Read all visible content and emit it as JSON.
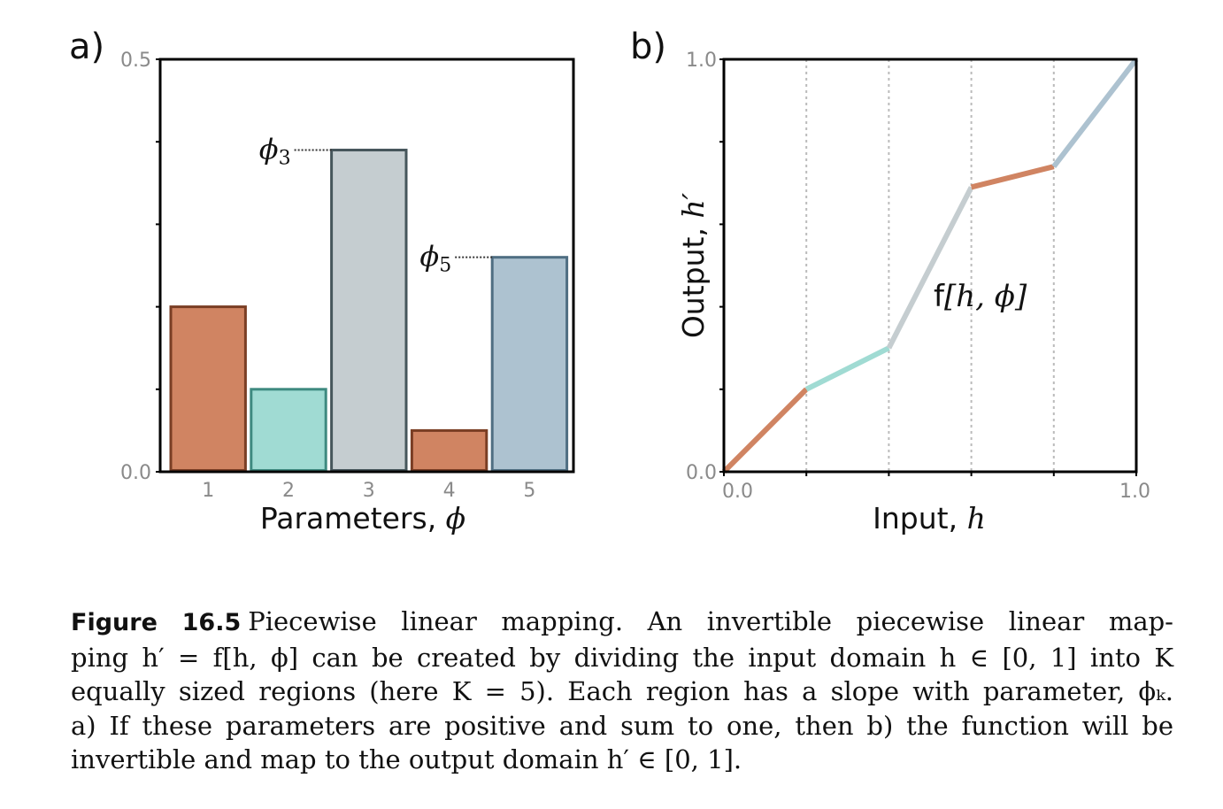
{
  "chart_data": [
    {
      "panel_label": "a)",
      "type": "bar",
      "title": "",
      "xlabel": "Parameters, ",
      "xlabel_math": "ϕ",
      "ylabel": "",
      "categories": [
        "1",
        "2",
        "3",
        "4",
        "5"
      ],
      "values": [
        0.2,
        0.1,
        0.39,
        0.05,
        0.26
      ],
      "ylim": [
        0.0,
        0.5
      ],
      "yticks": [
        0.0,
        0.1,
        0.2,
        0.3,
        0.4,
        0.5
      ],
      "ytick_labels": {
        "0": "0.0",
        "5": "0.5"
      },
      "grid": false,
      "colors": {
        "fill": [
          "#d08462",
          "#a0dbd3",
          "#c5cdd0",
          "#d08462",
          "#adc2d0"
        ],
        "stroke": [
          "#7a3e24",
          "#3e8a80",
          "#46565b",
          "#7a3e24",
          "#4f6e82"
        ]
      },
      "annotations": [
        {
          "text": "ϕ",
          "subscript": "3",
          "bar_index": 2
        },
        {
          "text": "ϕ",
          "subscript": "5",
          "bar_index": 4
        }
      ]
    },
    {
      "panel_label": "b)",
      "type": "line",
      "title": "",
      "xlabel": "Input, ",
      "xlabel_math": "h",
      "ylabel": "Output, ",
      "ylabel_math": "h′",
      "xlim": [
        0.0,
        1.0
      ],
      "ylim": [
        0.0,
        1.0
      ],
      "xtick_labels": [
        "0.0",
        "1.0"
      ],
      "ytick_labels": [
        "0.0",
        "1.0"
      ],
      "xticks": [
        0.0,
        0.2,
        0.4,
        0.6,
        0.8,
        1.0
      ],
      "yticks": [
        0.0,
        0.2,
        0.4,
        0.6,
        0.8,
        1.0
      ],
      "vertical_guides": [
        0.2,
        0.4,
        0.6,
        0.8
      ],
      "x": [
        0.0,
        0.2,
        0.4,
        0.6,
        0.8,
        1.0
      ],
      "y": [
        0.0,
        0.2,
        0.3,
        0.69,
        0.74,
        1.0
      ],
      "segment_colors": [
        "#d08462",
        "#a0dbd3",
        "#c5cdd0",
        "#d08462",
        "#adc2d0"
      ],
      "annotation": {
        "prefix": "f",
        "math": "[h, ϕ]"
      }
    }
  ],
  "caption": {
    "label": "Figure 16.5",
    "lines": [
      "Piecewise linear mapping.  An invertible piecewise linear map-",
      "ping h′ = f[h, ϕ] can be created by dividing the input domain h ∈ [0, 1] into K",
      "equally sized regions (here K = 5). Each region has a slope with parameter, ϕₖ.",
      "a) If these parameters are positive and sum to one, then b) the function will be",
      "invertible and map to the output domain h′ ∈ [0, 1]."
    ]
  }
}
